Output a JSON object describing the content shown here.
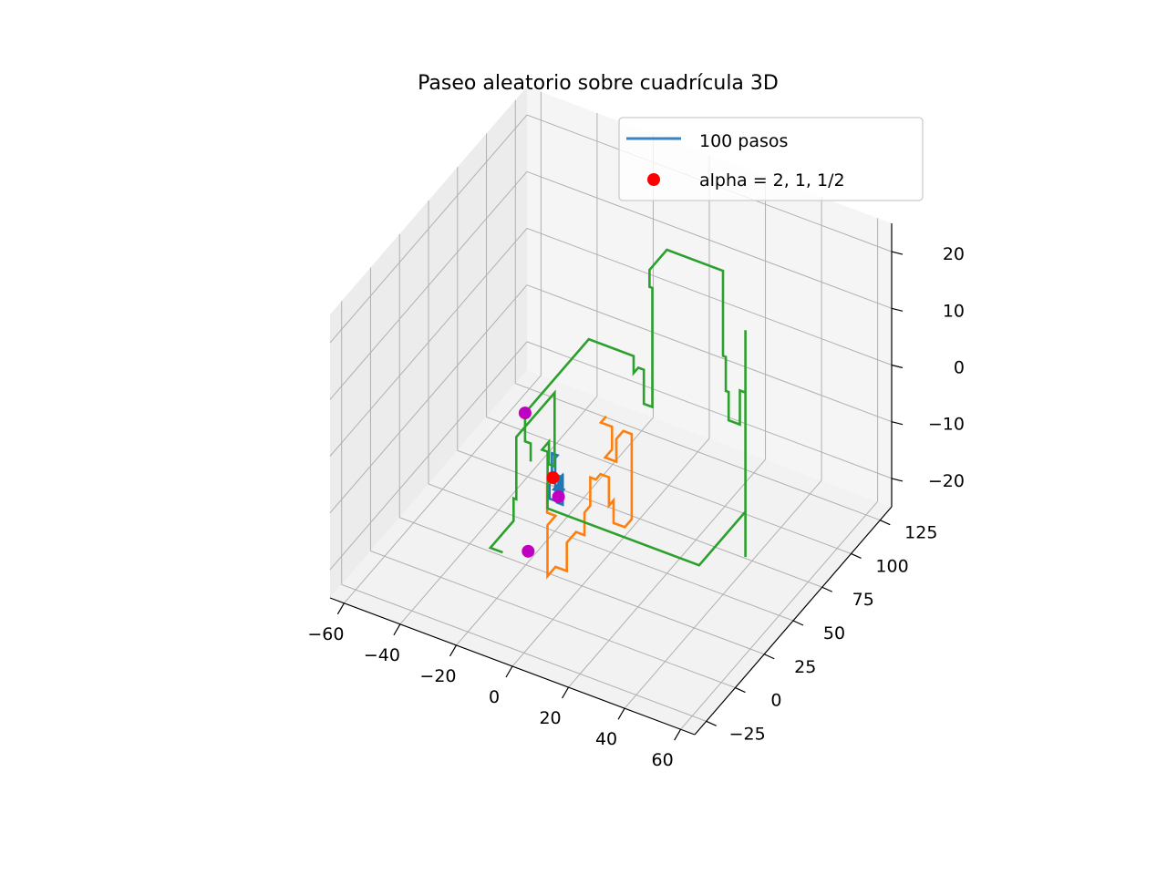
{
  "chart_data": {
    "type": "line",
    "projection": "3d",
    "title": "Paseo aleatorio sobre cuadrícula 3D",
    "grid": true,
    "legend_position": "top-right",
    "legend": [
      {
        "label": "100 pasos",
        "kind": "line",
        "color": "#3a82c4"
      },
      {
        "label": "alpha = 2, 1, 1/2",
        "kind": "marker",
        "color": "#ff0000"
      }
    ],
    "axes": {
      "x": {
        "ticks": [
          -60,
          -40,
          -20,
          0,
          20,
          40,
          60
        ],
        "tick_labels": [
          "−60",
          "−40",
          "−20",
          "0",
          "20",
          "40",
          "60"
        ],
        "range": [
          -65,
          65
        ]
      },
      "y": {
        "ticks": [
          -25,
          0,
          25,
          50,
          75,
          100,
          125
        ],
        "tick_labels": [
          "−25",
          "0",
          "25",
          "50",
          "75",
          "100",
          "125"
        ],
        "range": [
          -35,
          135
        ]
      },
      "z": {
        "ticks": [
          -20,
          -10,
          0,
          10,
          20
        ],
        "tick_labels": [
          "−20",
          "−10",
          "0",
          "10",
          "20"
        ],
        "range": [
          -25,
          25
        ]
      }
    },
    "series": [
      {
        "color": "#1f77b4",
        "points": [
          [
            0,
            0,
            0
          ],
          [
            2,
            0,
            0
          ],
          [
            2,
            3,
            0
          ],
          [
            2,
            3,
            -3
          ],
          [
            -1,
            3,
            -3
          ],
          [
            -1,
            6,
            -3
          ],
          [
            -1,
            6,
            -6
          ],
          [
            1,
            6,
            -6
          ],
          [
            1,
            6,
            -1
          ],
          [
            1,
            4,
            -1
          ],
          [
            -2,
            4,
            -1
          ],
          [
            -2,
            4,
            3
          ],
          [
            0,
            4,
            3
          ],
          [
            0,
            2,
            3
          ],
          [
            0,
            2,
            -2
          ],
          [
            3,
            2,
            -2
          ],
          [
            3,
            -1,
            -2
          ],
          [
            3,
            -1,
            1
          ],
          [
            0,
            -1,
            1
          ],
          [
            0,
            -3,
            1
          ],
          [
            0,
            -3,
            -3
          ],
          [
            2,
            -3,
            -3
          ],
          [
            2,
            0,
            -3
          ],
          [
            2,
            0,
            0
          ]
        ]
      },
      {
        "color": "#ff7f0e",
        "points": [
          [
            0,
            0,
            0
          ],
          [
            0,
            -5,
            0
          ],
          [
            0,
            -5,
            -5
          ],
          [
            3,
            -5,
            -5
          ],
          [
            3,
            -12,
            -5
          ],
          [
            3,
            -12,
            -10
          ],
          [
            3,
            -12,
            -14
          ],
          [
            3,
            -5,
            -14
          ],
          [
            7,
            -5,
            -14
          ],
          [
            7,
            -5,
            -9
          ],
          [
            7,
            3,
            -9
          ],
          [
            10,
            3,
            -9
          ],
          [
            10,
            3,
            -5
          ],
          [
            10,
            8,
            -5
          ],
          [
            10,
            8,
            0
          ],
          [
            12,
            8,
            0
          ],
          [
            12,
            12,
            0
          ],
          [
            15,
            12,
            0
          ],
          [
            15,
            12,
            -5
          ],
          [
            15,
            16,
            -5
          ],
          [
            15,
            16,
            -9
          ],
          [
            19,
            16,
            -9
          ],
          [
            19,
            22,
            -9
          ],
          [
            19,
            22,
            0
          ],
          [
            19,
            22,
            6
          ],
          [
            16,
            22,
            6
          ],
          [
            16,
            16,
            6
          ],
          [
            16,
            16,
            2
          ],
          [
            12,
            16,
            2
          ],
          [
            12,
            22,
            2
          ],
          [
            12,
            22,
            6
          ],
          [
            8,
            22,
            6
          ],
          [
            8,
            26,
            6
          ]
        ]
      },
      {
        "color": "#2ca02c",
        "points": [
          [
            -10,
            5,
            0
          ],
          [
            -10,
            5,
            3
          ],
          [
            -12,
            5,
            3
          ],
          [
            -12,
            5,
            8
          ],
          [
            -12,
            60,
            8
          ],
          [
            4,
            60,
            8
          ],
          [
            4,
            60,
            5
          ],
          [
            4,
            64,
            5
          ],
          [
            6,
            64,
            5
          ],
          [
            6,
            64,
            -1
          ],
          [
            9,
            64,
            -1
          ],
          [
            9,
            64,
            5
          ],
          [
            9,
            64,
            20
          ],
          [
            8,
            64,
            20
          ],
          [
            8,
            64,
            23
          ],
          [
            8,
            79,
            23
          ],
          [
            8,
            79,
            23
          ],
          [
            28,
            79,
            23
          ],
          [
            28,
            79,
            8
          ],
          [
            29,
            79,
            8
          ],
          [
            29,
            79,
            2
          ],
          [
            30,
            79,
            2
          ],
          [
            30,
            79,
            -3
          ],
          [
            34,
            79,
            -3
          ],
          [
            34,
            79,
            3
          ],
          [
            36,
            79,
            3
          ],
          [
            36,
            79,
            14
          ],
          [
            36,
            79,
            -18
          ],
          [
            36,
            79,
            -26
          ],
          [
            36,
            79,
            -18
          ],
          [
            36,
            39,
            -18
          ],
          [
            -18,
            39,
            -18
          ],
          [
            -18,
            39,
            -8
          ],
          [
            -20,
            39,
            -8
          ],
          [
            -20,
            45,
            -8
          ],
          [
            -20,
            45,
            -12
          ],
          [
            -18,
            45,
            -12
          ],
          [
            -18,
            45,
            1
          ],
          [
            -18,
            12,
            1
          ],
          [
            -18,
            12,
            -10
          ],
          [
            -19,
            12,
            -10
          ],
          [
            -19,
            12,
            -14
          ],
          [
            -19,
            -8,
            -14
          ],
          [
            -15,
            -8,
            -14
          ]
        ]
      }
    ],
    "markers": [
      {
        "color": "#ff0000",
        "point": [
          0,
          0,
          0
        ]
      },
      {
        "color": "#c000c0",
        "point": [
          2,
          0,
          -3
        ]
      },
      {
        "color": "#c000c0",
        "point": [
          -8,
          -2,
          -14
        ]
      },
      {
        "color": "#c000c0",
        "point": [
          -12,
          5,
          8
        ]
      }
    ]
  }
}
